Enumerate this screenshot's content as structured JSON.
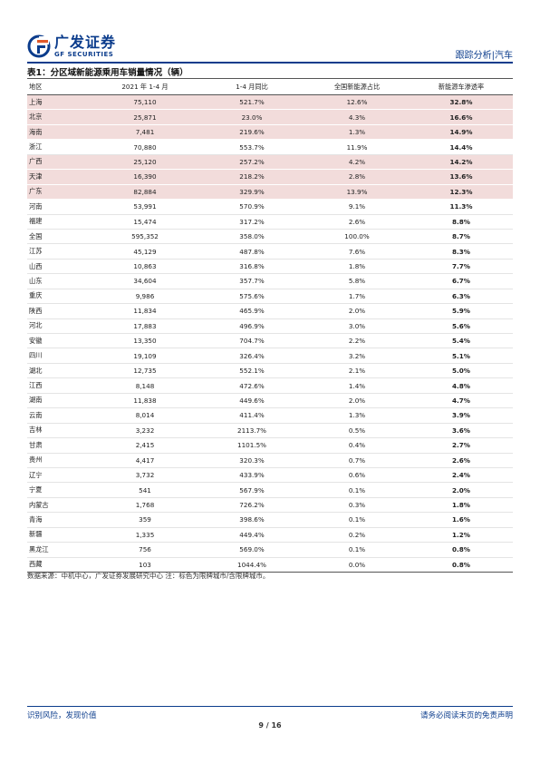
{
  "header": {
    "logo_cn": "广发证券",
    "logo_en": "GF SECURITIES",
    "section": "跟踪分析|汽车",
    "brand_color": "#0b3c8c",
    "highlight_color": "#f2dcdb"
  },
  "table": {
    "title": "表1：分区域新能源乘用车销量情况（辆）",
    "headers": [
      "地区",
      "2021 年 1-4 月",
      "1-4 月同比",
      "全国新能源占比",
      "新能源车渗透率"
    ],
    "rows": [
      {
        "region": "上海",
        "sales": "75,110",
        "yoy": "521.7%",
        "share": "12.6%",
        "penetration": "32.8%",
        "highlight": true
      },
      {
        "region": "北京",
        "sales": "25,871",
        "yoy": "23.0%",
        "share": "4.3%",
        "penetration": "16.6%",
        "highlight": true
      },
      {
        "region": "海南",
        "sales": "7,481",
        "yoy": "219.6%",
        "share": "1.3%",
        "penetration": "14.9%",
        "highlight": true
      },
      {
        "region": "浙江",
        "sales": "70,880",
        "yoy": "553.7%",
        "share": "11.9%",
        "penetration": "14.4%",
        "highlight": false
      },
      {
        "region": "广西",
        "sales": "25,120",
        "yoy": "257.2%",
        "share": "4.2%",
        "penetration": "14.2%",
        "highlight": true
      },
      {
        "region": "天津",
        "sales": "16,390",
        "yoy": "218.2%",
        "share": "2.8%",
        "penetration": "13.6%",
        "highlight": true
      },
      {
        "region": "广东",
        "sales": "82,884",
        "yoy": "329.9%",
        "share": "13.9%",
        "penetration": "12.3%",
        "highlight": true
      },
      {
        "region": "河南",
        "sales": "53,991",
        "yoy": "570.9%",
        "share": "9.1%",
        "penetration": "11.3%",
        "highlight": false
      },
      {
        "region": "福建",
        "sales": "15,474",
        "yoy": "317.2%",
        "share": "2.6%",
        "penetration": "8.8%",
        "highlight": false
      },
      {
        "region": "全国",
        "sales": "595,352",
        "yoy": "358.0%",
        "share": "100.0%",
        "penetration": "8.7%",
        "highlight": false
      },
      {
        "region": "江苏",
        "sales": "45,129",
        "yoy": "487.8%",
        "share": "7.6%",
        "penetration": "8.3%",
        "highlight": false
      },
      {
        "region": "山西",
        "sales": "10,863",
        "yoy": "316.8%",
        "share": "1.8%",
        "penetration": "7.7%",
        "highlight": false
      },
      {
        "region": "山东",
        "sales": "34,604",
        "yoy": "357.7%",
        "share": "5.8%",
        "penetration": "6.7%",
        "highlight": false
      },
      {
        "region": "重庆",
        "sales": "9,986",
        "yoy": "575.6%",
        "share": "1.7%",
        "penetration": "6.3%",
        "highlight": false
      },
      {
        "region": "陕西",
        "sales": "11,834",
        "yoy": "465.9%",
        "share": "2.0%",
        "penetration": "5.9%",
        "highlight": false
      },
      {
        "region": "河北",
        "sales": "17,883",
        "yoy": "496.9%",
        "share": "3.0%",
        "penetration": "5.6%",
        "highlight": false
      },
      {
        "region": "安徽",
        "sales": "13,350",
        "yoy": "704.7%",
        "share": "2.2%",
        "penetration": "5.4%",
        "highlight": false
      },
      {
        "region": "四川",
        "sales": "19,109",
        "yoy": "326.4%",
        "share": "3.2%",
        "penetration": "5.1%",
        "highlight": false
      },
      {
        "region": "湖北",
        "sales": "12,735",
        "yoy": "552.1%",
        "share": "2.1%",
        "penetration": "5.0%",
        "highlight": false
      },
      {
        "region": "江西",
        "sales": "8,148",
        "yoy": "472.6%",
        "share": "1.4%",
        "penetration": "4.8%",
        "highlight": false
      },
      {
        "region": "湖南",
        "sales": "11,838",
        "yoy": "449.6%",
        "share": "2.0%",
        "penetration": "4.7%",
        "highlight": false
      },
      {
        "region": "云南",
        "sales": "8,014",
        "yoy": "411.4%",
        "share": "1.3%",
        "penetration": "3.9%",
        "highlight": false
      },
      {
        "region": "吉林",
        "sales": "3,232",
        "yoy": "2113.7%",
        "share": "0.5%",
        "penetration": "3.6%",
        "highlight": false
      },
      {
        "region": "甘肃",
        "sales": "2,415",
        "yoy": "1101.5%",
        "share": "0.4%",
        "penetration": "2.7%",
        "highlight": false
      },
      {
        "region": "贵州",
        "sales": "4,417",
        "yoy": "320.3%",
        "share": "0.7%",
        "penetration": "2.6%",
        "highlight": false
      },
      {
        "region": "辽宁",
        "sales": "3,732",
        "yoy": "433.9%",
        "share": "0.6%",
        "penetration": "2.4%",
        "highlight": false
      },
      {
        "region": "宁夏",
        "sales": "541",
        "yoy": "567.9%",
        "share": "0.1%",
        "penetration": "2.0%",
        "highlight": false
      },
      {
        "region": "内蒙古",
        "sales": "1,768",
        "yoy": "726.2%",
        "share": "0.3%",
        "penetration": "1.8%",
        "highlight": false
      },
      {
        "region": "青海",
        "sales": "359",
        "yoy": "398.6%",
        "share": "0.1%",
        "penetration": "1.6%",
        "highlight": false
      },
      {
        "region": "新疆",
        "sales": "1,335",
        "yoy": "449.4%",
        "share": "0.2%",
        "penetration": "1.2%",
        "highlight": false
      },
      {
        "region": "黑龙江",
        "sales": "756",
        "yoy": "569.0%",
        "share": "0.1%",
        "penetration": "0.8%",
        "highlight": false
      },
      {
        "region": "西藏",
        "sales": "103",
        "yoy": "1044.4%",
        "share": "0.0%",
        "penetration": "0.8%",
        "highlight": false
      }
    ]
  },
  "source_note": "数据来源：中机中心，广发证券发展研究中心 注：标色为限牌城市/含限牌城市。",
  "footer": {
    "left": "识别风险，发现价值",
    "right": "请务必阅读末页的免责声明",
    "page": "9 / 16"
  }
}
